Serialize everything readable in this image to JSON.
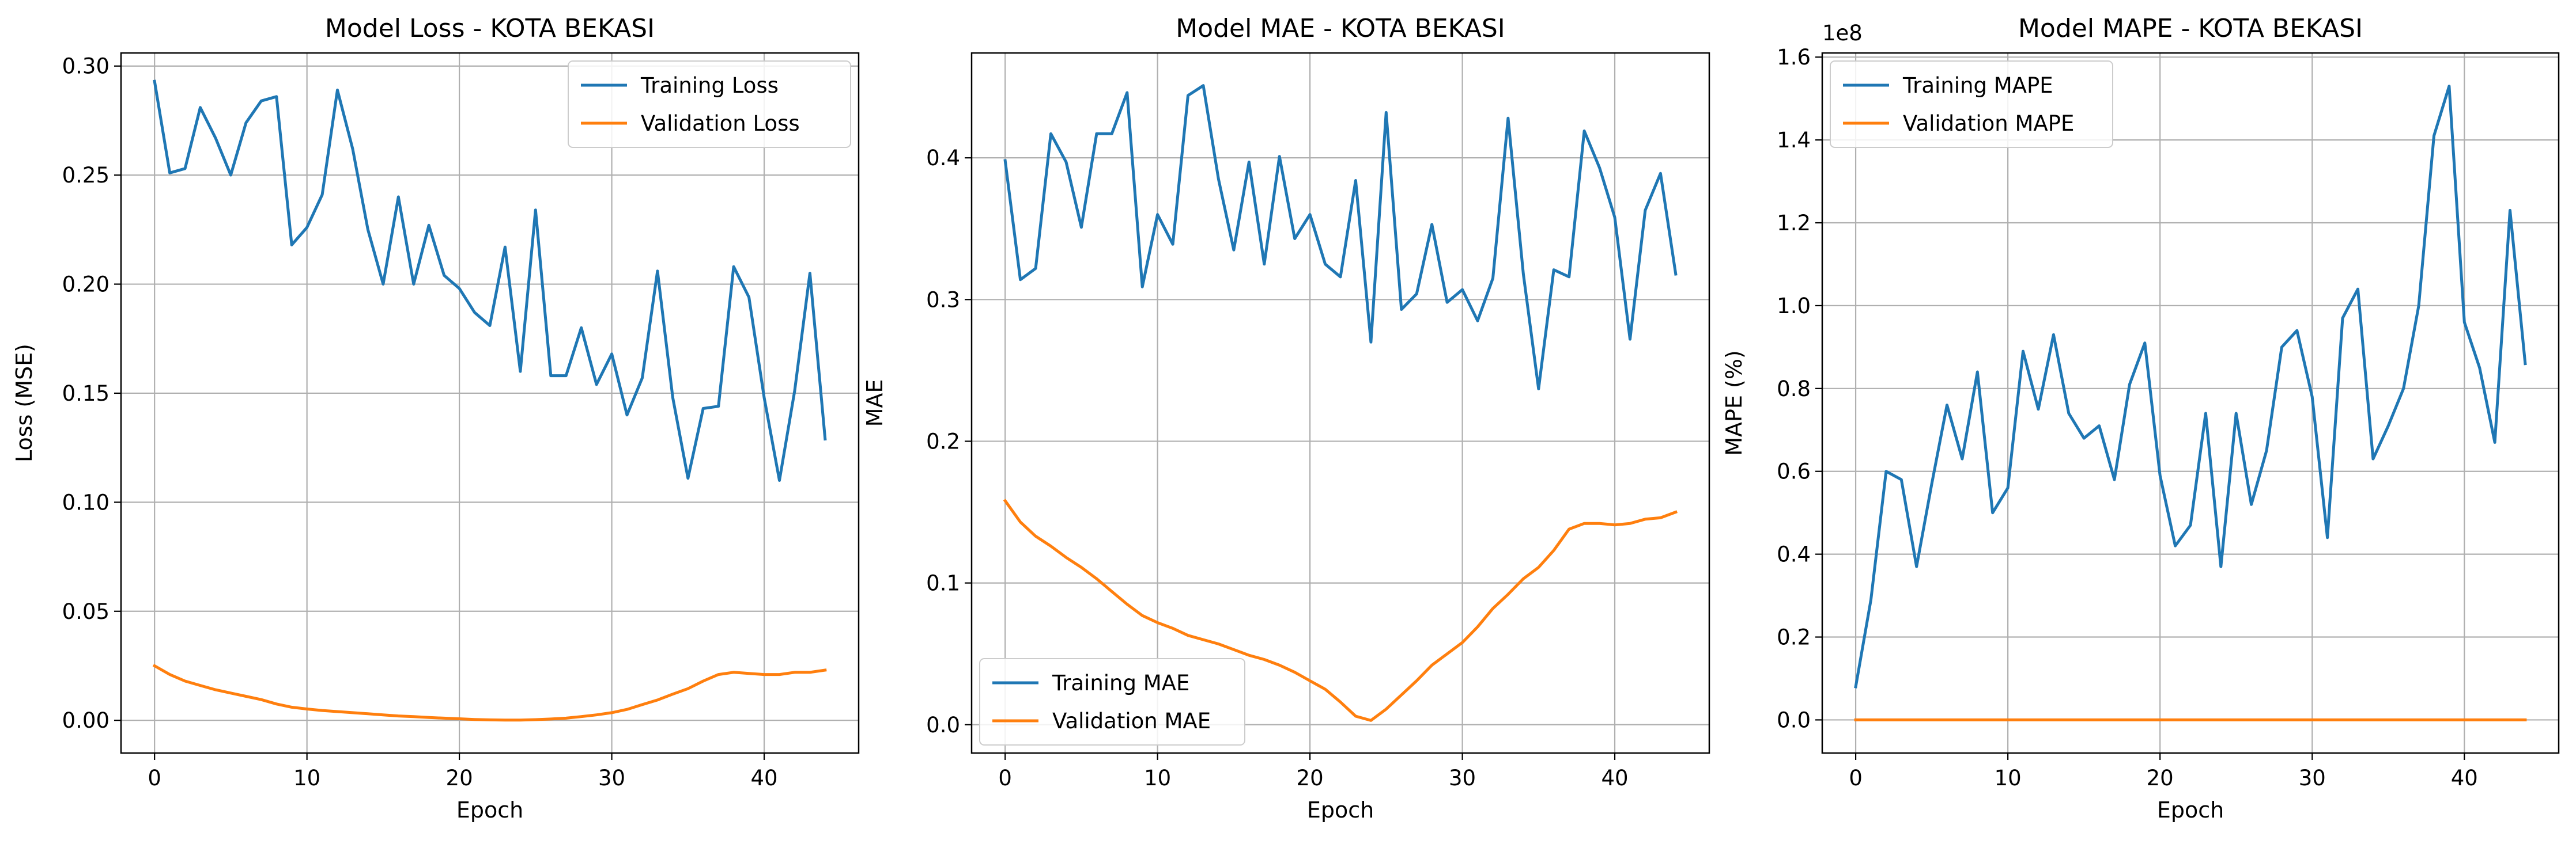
{
  "chart_data": [
    {
      "type": "line",
      "title": "Model Loss - KOTA BEKASI",
      "xlabel": "Epoch",
      "ylabel": "Loss (MSE)",
      "xlim": [
        -2.2,
        46.2
      ],
      "ylim": [
        -0.015,
        0.306
      ],
      "x_ticks": [
        0,
        10,
        20,
        30,
        40
      ],
      "y_ticks": [
        0.0,
        0.05,
        0.1,
        0.15,
        0.2,
        0.25,
        0.3
      ],
      "y_tick_labels": [
        "0.00",
        "0.05",
        "0.10",
        "0.15",
        "0.20",
        "0.25",
        "0.30"
      ],
      "grid": true,
      "legend_position": "top-right",
      "series": [
        {
          "name": "Training Loss",
          "color": "#1f77b4",
          "values": [
            0.293,
            0.251,
            0.253,
            0.281,
            0.267,
            0.25,
            0.274,
            0.284,
            0.286,
            0.218,
            0.226,
            0.241,
            0.289,
            0.262,
            0.225,
            0.2,
            0.24,
            0.2,
            0.227,
            0.204,
            0.198,
            0.187,
            0.181,
            0.217,
            0.16,
            0.234,
            0.158,
            0.158,
            0.18,
            0.154,
            0.168,
            0.14,
            0.157,
            0.206,
            0.148,
            0.111,
            0.143,
            0.144,
            0.208,
            0.194,
            0.148,
            0.11,
            0.151,
            0.205,
            0.129
          ]
        },
        {
          "name": "Validation Loss",
          "color": "#ff7f0e",
          "values": [
            0.025,
            0.021,
            0.018,
            0.016,
            0.014,
            0.0125,
            0.011,
            0.0095,
            0.0075,
            0.006,
            0.0052,
            0.0045,
            0.004,
            0.0035,
            0.003,
            0.0025,
            0.002,
            0.0017,
            0.0013,
            0.001,
            0.0007,
            0.0004,
            0.0002,
            0.0001,
            0.0001,
            0.0003,
            0.0006,
            0.001,
            0.0017,
            0.0025,
            0.0035,
            0.005,
            0.0072,
            0.0093,
            0.012,
            0.0145,
            0.018,
            0.021,
            0.022,
            0.0215,
            0.021,
            0.021,
            0.022,
            0.022,
            0.023
          ]
        }
      ]
    },
    {
      "type": "line",
      "title": "Model MAE - KOTA BEKASI",
      "xlabel": "Epoch",
      "ylabel": "MAE",
      "xlim": [
        -2.2,
        46.2
      ],
      "ylim": [
        -0.02,
        0.474
      ],
      "x_ticks": [
        0,
        10,
        20,
        30,
        40
      ],
      "y_ticks": [
        0.0,
        0.1,
        0.2,
        0.3,
        0.4
      ],
      "y_tick_labels": [
        "0.0",
        "0.1",
        "0.2",
        "0.3",
        "0.4"
      ],
      "grid": true,
      "legend_position": "bottom-left",
      "series": [
        {
          "name": "Training MAE",
          "color": "#1f77b4",
          "values": [
            0.398,
            0.314,
            0.322,
            0.417,
            0.397,
            0.351,
            0.417,
            0.417,
            0.446,
            0.309,
            0.36,
            0.339,
            0.444,
            0.451,
            0.385,
            0.335,
            0.397,
            0.325,
            0.401,
            0.343,
            0.36,
            0.325,
            0.316,
            0.384,
            0.27,
            0.432,
            0.293,
            0.304,
            0.353,
            0.298,
            0.307,
            0.285,
            0.315,
            0.428,
            0.318,
            0.237,
            0.321,
            0.316,
            0.419,
            0.393,
            0.358,
            0.272,
            0.363,
            0.389,
            0.318
          ]
        },
        {
          "name": "Validation MAE",
          "color": "#ff7f0e",
          "values": [
            0.158,
            0.143,
            0.133,
            0.126,
            0.118,
            0.111,
            0.103,
            0.094,
            0.085,
            0.077,
            0.072,
            0.068,
            0.063,
            0.06,
            0.057,
            0.053,
            0.049,
            0.046,
            0.042,
            0.037,
            0.031,
            0.025,
            0.016,
            0.006,
            0.003,
            0.011,
            0.021,
            0.031,
            0.042,
            0.05,
            0.058,
            0.069,
            0.082,
            0.092,
            0.103,
            0.111,
            0.123,
            0.138,
            0.142,
            0.142,
            0.141,
            0.142,
            0.145,
            0.146,
            0.15
          ]
        }
      ]
    },
    {
      "type": "line",
      "title": "Model MAPE - KOTA BEKASI",
      "xlabel": "Epoch",
      "ylabel": "MAPE (%)",
      "y_offset_label": "1e8",
      "xlim": [
        -2.2,
        46.2
      ],
      "ylim": [
        -0.08,
        1.61
      ],
      "x_ticks": [
        0,
        10,
        20,
        30,
        40
      ],
      "y_ticks": [
        0.0,
        0.2,
        0.4,
        0.6,
        0.8,
        1.0,
        1.2,
        1.4,
        1.6
      ],
      "y_tick_labels": [
        "0.0",
        "0.2",
        "0.4",
        "0.6",
        "0.8",
        "1.0",
        "1.2",
        "1.4",
        "1.6"
      ],
      "grid": true,
      "legend_position": "top-left",
      "series": [
        {
          "name": "Training MAPE",
          "color": "#1f77b4",
          "values": [
            0.08,
            0.29,
            0.6,
            0.58,
            0.37,
            0.57,
            0.76,
            0.63,
            0.84,
            0.5,
            0.56,
            0.89,
            0.75,
            0.93,
            0.74,
            0.68,
            0.71,
            0.58,
            0.81,
            0.91,
            0.59,
            0.42,
            0.47,
            0.74,
            0.37,
            0.74,
            0.52,
            0.65,
            0.9,
            0.94,
            0.78,
            0.44,
            0.97,
            1.04,
            0.63,
            0.71,
            0.8,
            1.0,
            1.41,
            1.53,
            0.96,
            0.85,
            0.67,
            1.23,
            0.86
          ]
        },
        {
          "name": "Validation MAPE",
          "color": "#ff7f0e",
          "values": [
            0,
            0,
            0,
            0,
            0,
            0,
            0,
            0,
            0,
            0,
            0,
            0,
            0,
            0,
            0,
            0,
            0,
            0,
            0,
            0,
            0,
            0,
            0,
            0,
            0,
            0,
            0,
            0,
            0,
            0,
            0,
            0,
            0,
            0,
            0,
            0,
            0,
            0,
            0,
            0,
            0,
            0,
            0,
            0,
            0
          ]
        }
      ]
    }
  ]
}
